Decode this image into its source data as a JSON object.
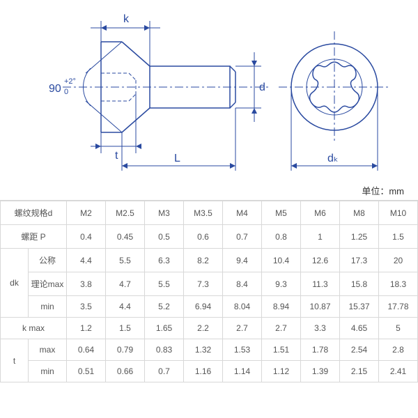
{
  "diagram": {
    "type": "engineering-drawing",
    "stroke": "#2a4aa0",
    "centerline": "#2a4aa0",
    "text_color": "#2a4aa0",
    "background": "#ffffff",
    "angle_label": "90",
    "angle_tol_upper": "+2°",
    "angle_tol_lower": "0",
    "label_k": "k",
    "label_t": "t",
    "label_L": "L",
    "label_d": "d",
    "label_dk": "dₖ"
  },
  "unit_label": "单位：mm",
  "table": {
    "columns": [
      "M2",
      "M2.5",
      "M3",
      "M3.5",
      "M4",
      "M5",
      "M6",
      "M8",
      "M10"
    ],
    "rows": [
      {
        "group": "",
        "label": "螺纹规格d",
        "values": [
          "M2",
          "M2.5",
          "M3",
          "M3.5",
          "M4",
          "M5",
          "M6",
          "M8",
          "M10"
        ]
      },
      {
        "group": "",
        "label": "螺距 P",
        "values": [
          "0.4",
          "0.45",
          "0.5",
          "0.6",
          "0.7",
          "0.8",
          "1",
          "1.25",
          "1.5"
        ]
      },
      {
        "group": "dk",
        "label": "公称",
        "values": [
          "4.4",
          "5.5",
          "6.3",
          "8.2",
          "9.4",
          "10.4",
          "12.6",
          "17.3",
          "20"
        ]
      },
      {
        "group": "dk",
        "label": "理论max",
        "values": [
          "3.8",
          "4.7",
          "5.5",
          "7.3",
          "8.4",
          "9.3",
          "11.3",
          "15.8",
          "18.3"
        ]
      },
      {
        "group": "dk",
        "label": "min",
        "values": [
          "3.5",
          "4.4",
          "5.2",
          "6.94",
          "8.04",
          "8.94",
          "10.87",
          "15.37",
          "17.78"
        ]
      },
      {
        "group": "",
        "label": "k max",
        "values": [
          "1.2",
          "1.5",
          "1.65",
          "2.2",
          "2.7",
          "2.7",
          "3.3",
          "4.65",
          "5"
        ]
      },
      {
        "group": "t",
        "label": "max",
        "values": [
          "0.64",
          "0.79",
          "0.83",
          "1.32",
          "1.53",
          "1.51",
          "1.78",
          "2.54",
          "2.8"
        ]
      },
      {
        "group": "t",
        "label": "min",
        "values": [
          "0.51",
          "0.66",
          "0.7",
          "1.16",
          "1.14",
          "1.12",
          "1.39",
          "2.15",
          "2.41"
        ]
      }
    ]
  }
}
